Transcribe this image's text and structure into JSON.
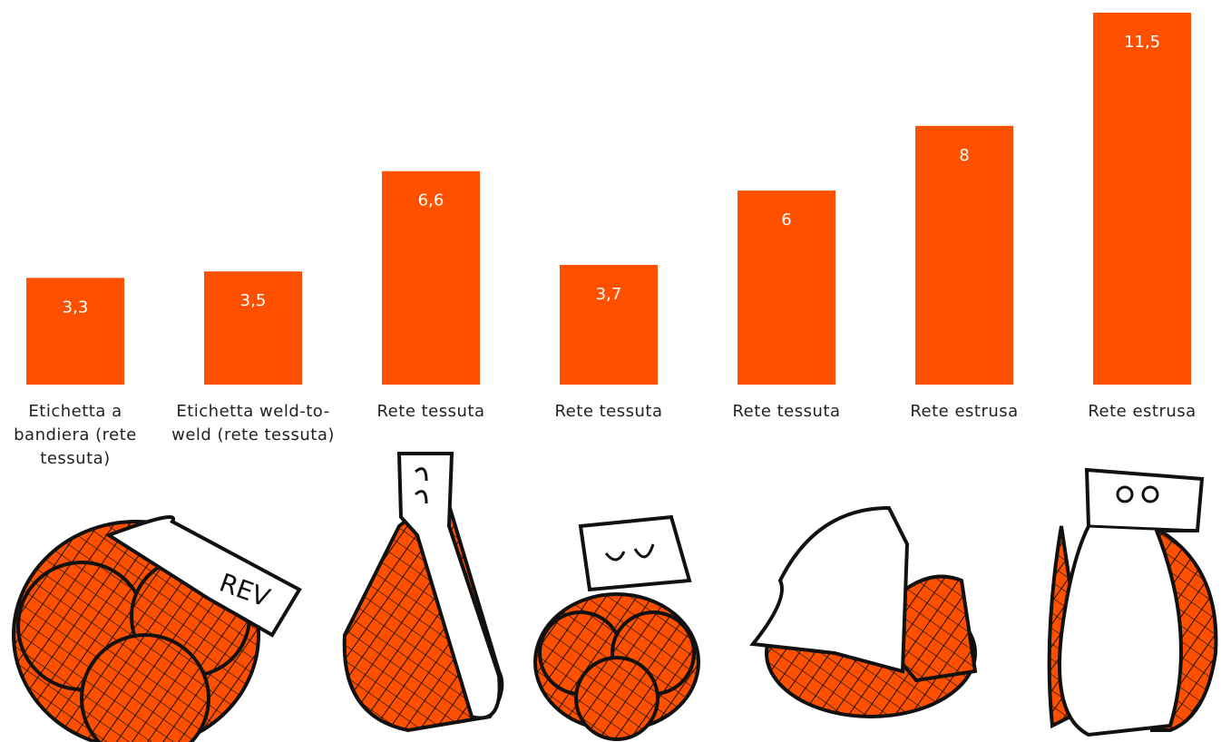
{
  "chart_data": {
    "type": "bar",
    "categories": [
      "Etichetta a bandiera (rete tessuta)",
      "Etichetta weld-to-weld (rete tessuta)",
      "Rete tessuta",
      "Rete tessuta",
      "Rete tessuta",
      "Rete estrusa",
      "Rete estrusa"
    ],
    "values": [
      3.3,
      3.5,
      6.6,
      3.7,
      6,
      8,
      11.5
    ],
    "value_labels": [
      "3,3",
      "3,5",
      "6,6",
      "3,7",
      "6",
      "8",
      "11,5"
    ],
    "color": "#ff5000"
  }
}
